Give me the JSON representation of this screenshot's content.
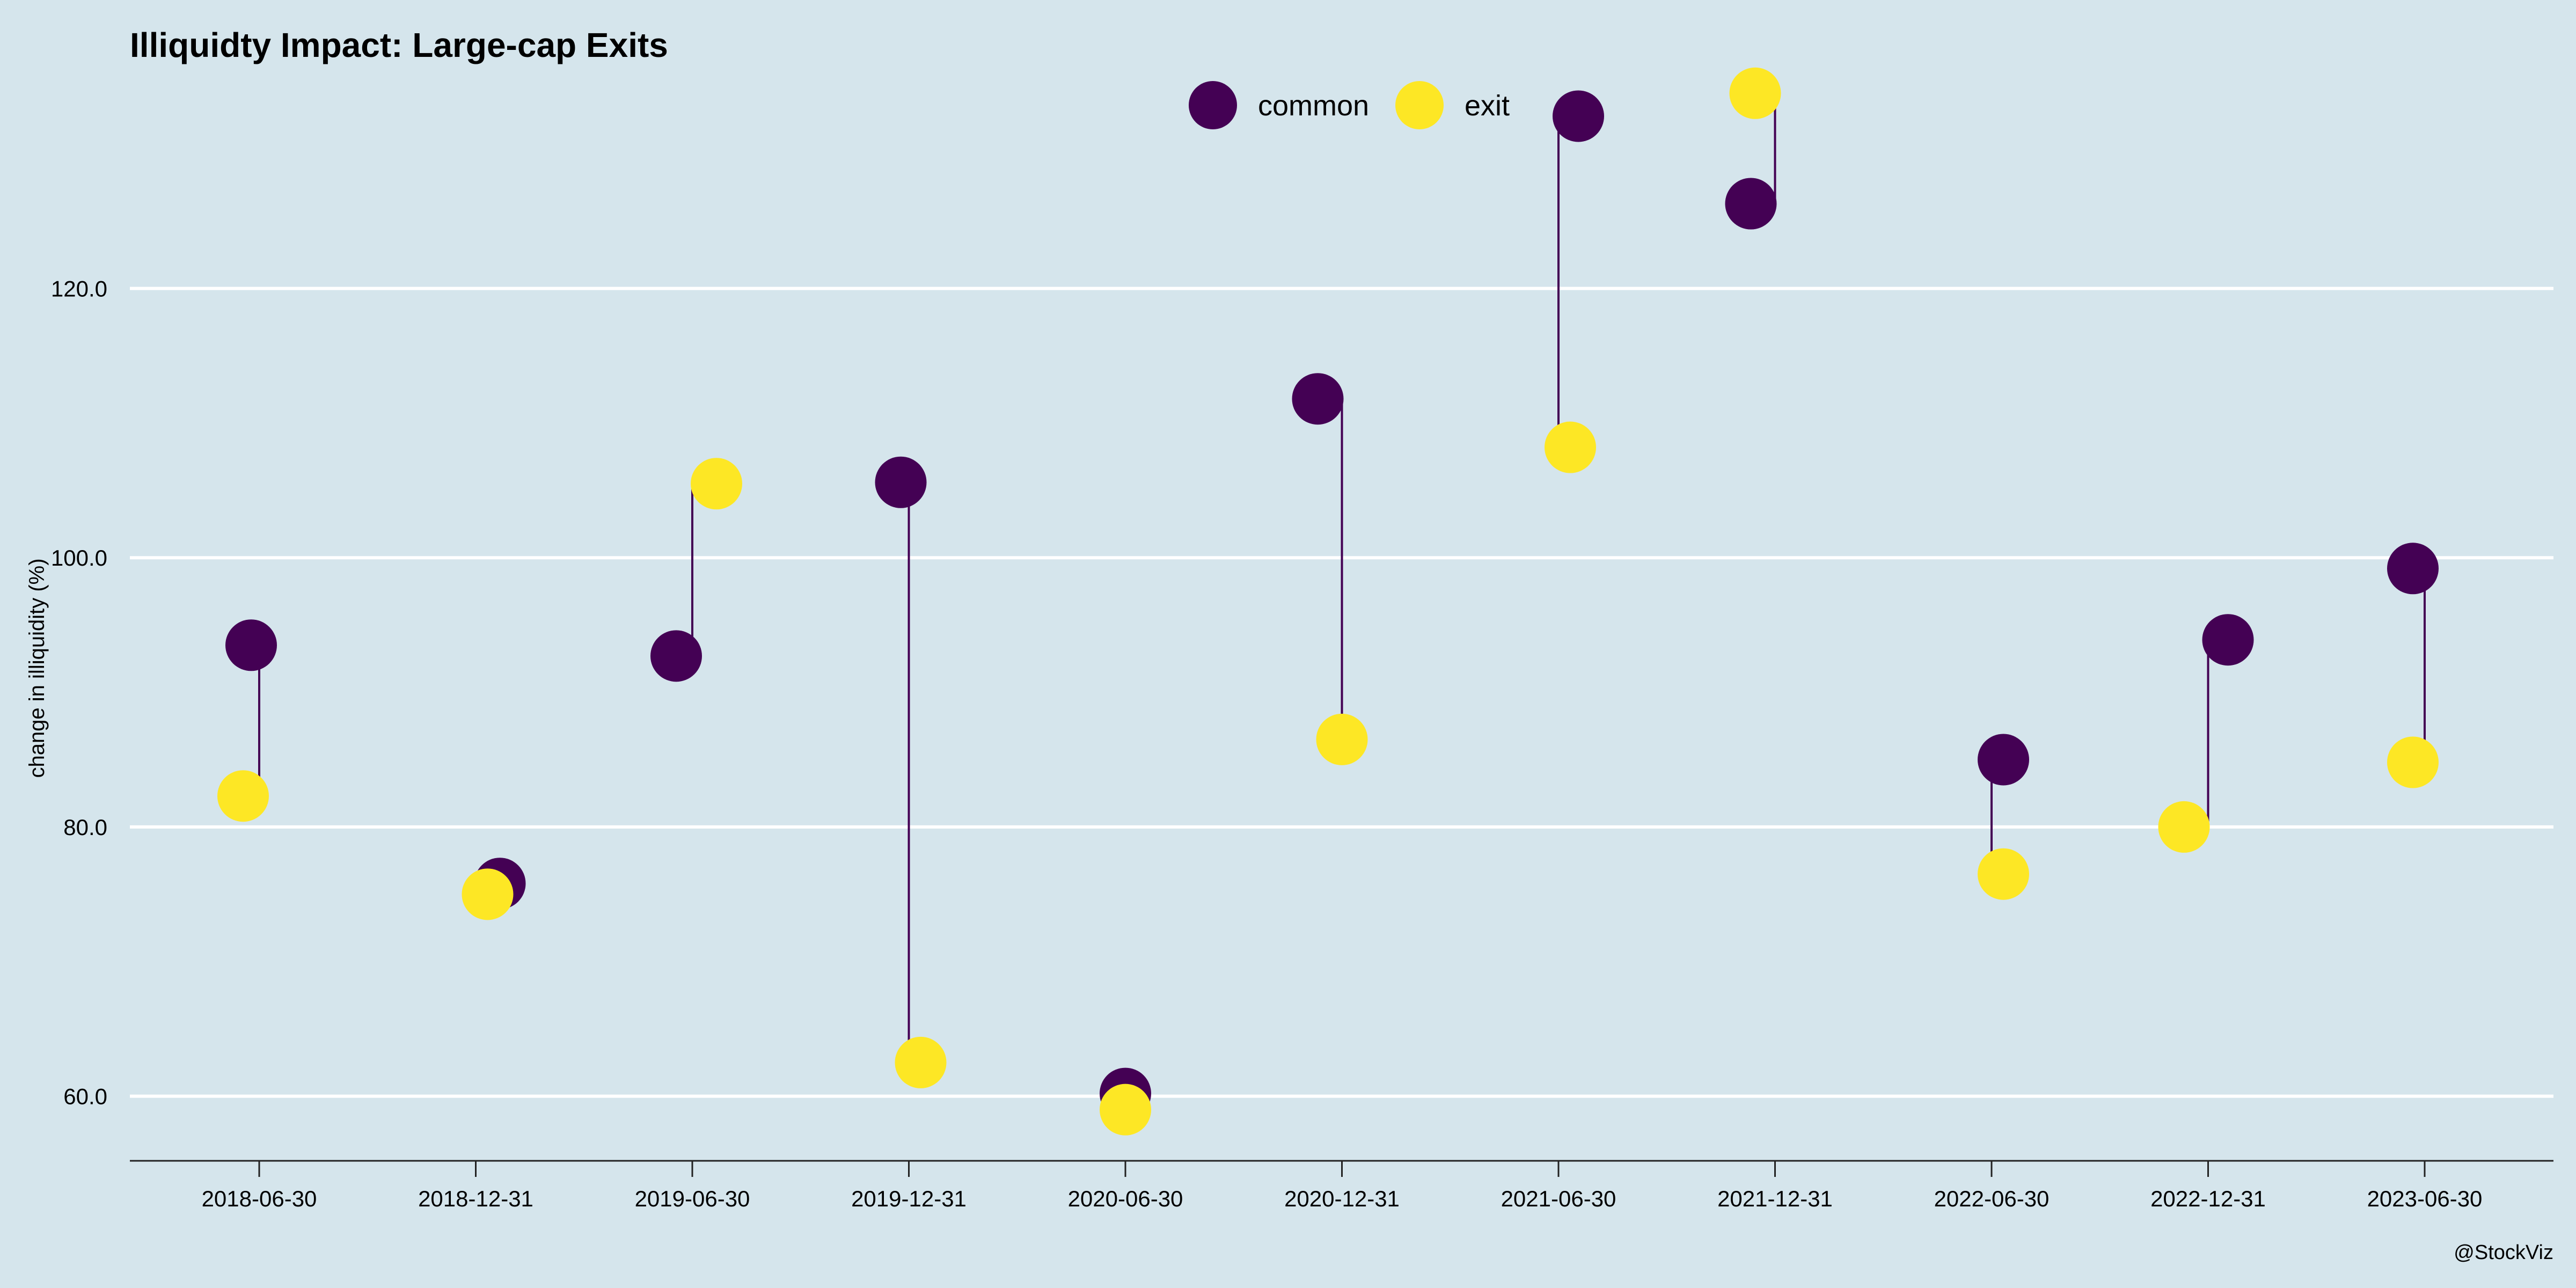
{
  "chart_data": {
    "type": "scatter",
    "title": "Illiquidty Impact: Large-cap Exits",
    "ylabel": "change in illiquidity (%)",
    "xlabel": "",
    "categories": [
      "2018-06-30",
      "2018-12-31",
      "2019-06-30",
      "2019-12-31",
      "2020-06-30",
      "2020-12-31",
      "2021-06-30",
      "2021-12-31",
      "2022-06-30",
      "2022-12-31",
      "2023-06-30"
    ],
    "series": [
      {
        "name": "common",
        "color": "#440154",
        "values": [
          93.5,
          75.8,
          92.7,
          105.6,
          60.2,
          111.8,
          132.8,
          126.3,
          85.0,
          93.9,
          99.2
        ]
      },
      {
        "name": "exit",
        "color": "#fde725",
        "values": [
          82.3,
          75.0,
          105.5,
          62.5,
          59.0,
          86.5,
          108.2,
          134.5,
          76.5,
          80.0,
          84.8
        ]
      }
    ],
    "yticks": [
      60.0,
      80.0,
      100.0,
      120.0
    ],
    "ylim": [
      55.2,
      138.0
    ],
    "grid": true,
    "legend_position": "top-center",
    "caption": "@StockViz"
  }
}
